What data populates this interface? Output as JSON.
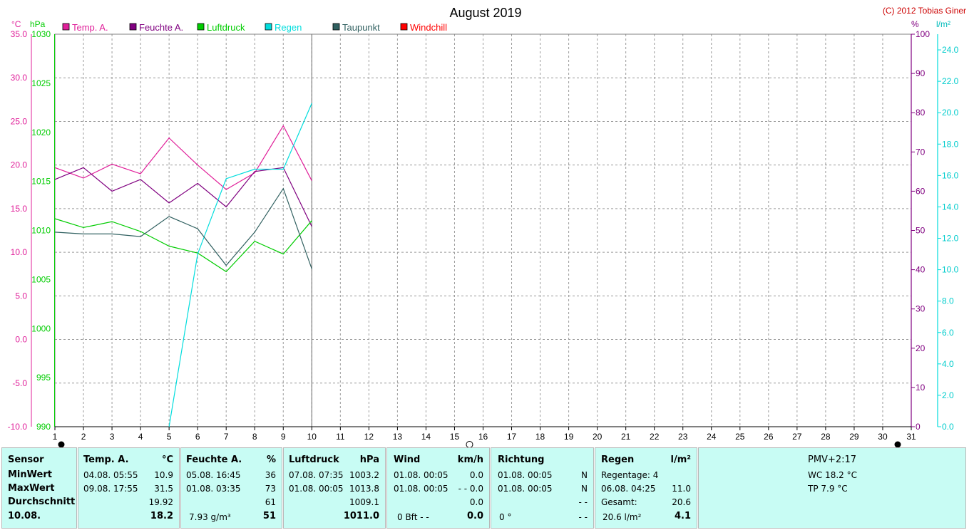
{
  "chart_data": {
    "type": "line",
    "title": "August 2019",
    "copyright": "(C) 2012 Tobias Giner",
    "x_ticks": [
      1,
      2,
      3,
      4,
      5,
      6,
      7,
      8,
      9,
      10,
      11,
      12,
      13,
      14,
      15,
      16,
      17,
      18,
      19,
      20,
      21,
      22,
      23,
      24,
      25,
      26,
      27,
      28,
      29,
      30,
      31
    ],
    "axes": {
      "temp": {
        "unit": "°C",
        "range": [
          -10,
          35
        ],
        "ticks": [
          "-10.0",
          "-5.0",
          "0.0",
          "5.0",
          "10.0",
          "15.0",
          "20.0",
          "25.0",
          "30.0",
          "35.0"
        ],
        "color": "#e0209a"
      },
      "pressure": {
        "unit": "hPa",
        "range": [
          990,
          1030
        ],
        "ticks": [
          "990",
          "995",
          "1000",
          "1005",
          "1010",
          "1015",
          "1020",
          "1025",
          "1030"
        ],
        "color": "#00cc00"
      },
      "humidity": {
        "unit": "%",
        "range": [
          0,
          100
        ],
        "ticks": [
          "0",
          "10",
          "20",
          "30",
          "40",
          "50",
          "60",
          "70",
          "80",
          "90",
          "100"
        ],
        "color": "#800080"
      },
      "rain": {
        "unit": "l/m²",
        "range": [
          0,
          25
        ],
        "ticks": [
          "0.0",
          "2.0",
          "4.0",
          "6.0",
          "8.0",
          "10.0",
          "12.0",
          "14.0",
          "16.0",
          "18.0",
          "20.0",
          "22.0",
          "24.0"
        ],
        "color": "#00dddd"
      }
    },
    "series": [
      {
        "name": "Temp. A.",
        "color": "#e0209a",
        "axis": "temp",
        "x": [
          1,
          2,
          3,
          4,
          5,
          6,
          7,
          8,
          9,
          10
        ],
        "values": [
          19.7,
          18.5,
          20.1,
          19.0,
          23.1,
          20.0,
          17.2,
          19.1,
          24.5,
          18.2
        ]
      },
      {
        "name": "Feuchte A.",
        "color": "#800080",
        "axis": "humidity",
        "x": [
          1,
          2,
          3,
          4,
          5,
          6,
          7,
          8,
          9,
          10
        ],
        "values": [
          63,
          66,
          60,
          63,
          57,
          62,
          56,
          65,
          66,
          51
        ]
      },
      {
        "name": "Luftdruck",
        "color": "#00cc00",
        "axis": "pressure",
        "x": [
          1,
          2,
          3,
          4,
          5,
          6,
          7,
          8,
          9,
          10
        ],
        "values": [
          1011.2,
          1010.3,
          1010.9,
          1009.9,
          1008.4,
          1007.7,
          1005.8,
          1008.9,
          1007.6,
          1011.0
        ]
      },
      {
        "name": "Regen",
        "color": "#00dddd",
        "axis": "rain",
        "x": [
          5,
          6,
          7,
          8,
          9,
          10
        ],
        "values": [
          0.0,
          11.0,
          15.8,
          16.4,
          16.4,
          20.6
        ]
      },
      {
        "name": "Taupunkt",
        "color": "#306060",
        "axis": "temp",
        "x": [
          1,
          2,
          3,
          4,
          5,
          6,
          7,
          8,
          9,
          10
        ],
        "values": [
          12.3,
          12.1,
          12.1,
          11.8,
          14.1,
          12.7,
          8.5,
          12.3,
          17.3,
          8.1
        ]
      },
      {
        "name": "Windchill",
        "color": "#ff0000",
        "axis": "temp",
        "x": [],
        "values": []
      }
    ]
  },
  "table": {
    "sensor": {
      "header": "Sensor",
      "rows": [
        "MinWert",
        "MaxWert",
        "Durchschnitt",
        "10.08."
      ]
    },
    "temp": {
      "header": "Temp. A.",
      "unit": "°C",
      "min_time": "04.08.  05:55",
      "min_val": "10.9",
      "max_time": "09.08.  17:55",
      "max_val": "31.5",
      "avg": "19.92",
      "current": "18.2"
    },
    "hum": {
      "header": "Feuchte A.",
      "unit": "%",
      "min_time": "05.08.  16:45",
      "min_val": "36",
      "max_time": "01.08.  03:35",
      "max_val": "73",
      "avg": "61",
      "current_extra": "7.93 g/m³",
      "current": "51"
    },
    "press": {
      "header": "Luftdruck",
      "unit": "hPa",
      "min_time": "07.08.  07:35",
      "min_val": "1003.2",
      "max_time": "01.08.  00:05",
      "max_val": "1013.8",
      "avg": "1009.1",
      "current": "1011.0"
    },
    "wind": {
      "header": "Wind",
      "unit": "km/h",
      "min_time": "01.08.  00:05",
      "min_val": "0.0",
      "max_time": "01.08.  00:05",
      "max_val": "- - 0.0",
      "avg": "0.0",
      "current_extra": "0 Bft - -",
      "current": "0.0"
    },
    "dir": {
      "header": "Richtung",
      "min_time": "01.08.  00:05",
      "min_val": "N",
      "max_time": "01.08.  00:05",
      "max_val": "N",
      "avg": "- -",
      "current_extra": "0 °",
      "current": "- -"
    },
    "rain": {
      "header": "Regen",
      "unit": "l/m²",
      "days": "Regentage: 4",
      "max_time": "06.08.  04:25",
      "max_val": "11.0",
      "total_label": "Gesamt:",
      "total": "20.6",
      "current_extra": "20.6 l/m²",
      "current": "4.1"
    },
    "pmv": {
      "header": "PMV+2:17",
      "wc": "WC 18.2 °C",
      "tp": "TP 7.9 °C"
    }
  }
}
